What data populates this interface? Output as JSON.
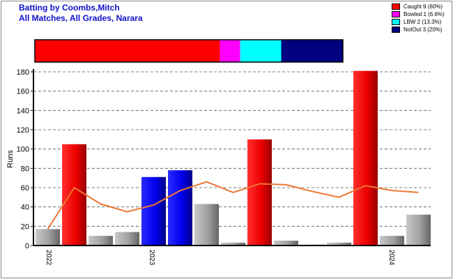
{
  "title_lines": [
    "Batting by Coombs,Mitch",
    "All Matches, All Grades, Narara"
  ],
  "legend": [
    {
      "label": "Caught 9 (60%)",
      "color": "#ff0000"
    },
    {
      "label": "Bowled 1 (6.6%)",
      "color": "#ff00ff"
    },
    {
      "label": "LBW 2 (13.3%)",
      "color": "#00ffff"
    },
    {
      "label": "NotOut 3 (20%)",
      "color": "#000080"
    }
  ],
  "chart_data": {
    "type": "bar",
    "ylabel": "Runs",
    "ylim": [
      0,
      180
    ],
    "yticks": [
      0,
      20,
      40,
      60,
      80,
      100,
      120,
      140,
      160,
      180
    ],
    "grid": true,
    "x_tick_labels": [
      {
        "index": 0,
        "label": "2022"
      },
      {
        "index": 4,
        "label": "2023"
      },
      {
        "index": 13,
        "label": "2024"
      }
    ],
    "innings": [
      {
        "runs": 17,
        "dismissal": "other"
      },
      {
        "runs": 105,
        "dismissal": "Caught"
      },
      {
        "runs": 10,
        "dismissal": "other"
      },
      {
        "runs": 14,
        "dismissal": "other"
      },
      {
        "runs": 71,
        "dismissal": "NotOut"
      },
      {
        "runs": 78,
        "dismissal": "NotOut"
      },
      {
        "runs": 43,
        "dismissal": "other"
      },
      {
        "runs": 3,
        "dismissal": "other"
      },
      {
        "runs": 110,
        "dismissal": "Caught"
      },
      {
        "runs": 5,
        "dismissal": "other"
      },
      {
        "runs": 1,
        "dismissal": "other"
      },
      {
        "runs": 3,
        "dismissal": "other"
      },
      {
        "runs": 181,
        "dismissal": "Caught"
      },
      {
        "runs": 10,
        "dismissal": "other"
      },
      {
        "runs": 32,
        "dismissal": "other"
      }
    ],
    "average_line": [
      17,
      60,
      43,
      35,
      42,
      57,
      66,
      55,
      64,
      63,
      56,
      50,
      62,
      57,
      55
    ],
    "dismissal_bar": [
      {
        "name": "Caught",
        "fraction": 0.6,
        "color": "#ff0000"
      },
      {
        "name": "Bowled",
        "fraction": 0.066,
        "color": "#ff00ff"
      },
      {
        "name": "LBW",
        "fraction": 0.133,
        "color": "#00ffff"
      },
      {
        "name": "NotOut",
        "fraction": 0.2,
        "color": "#000080"
      }
    ],
    "colors": {
      "Caught": "#ff0000",
      "NotOut": "#0000ff",
      "other": "#999999",
      "line": "#ee7733"
    }
  }
}
